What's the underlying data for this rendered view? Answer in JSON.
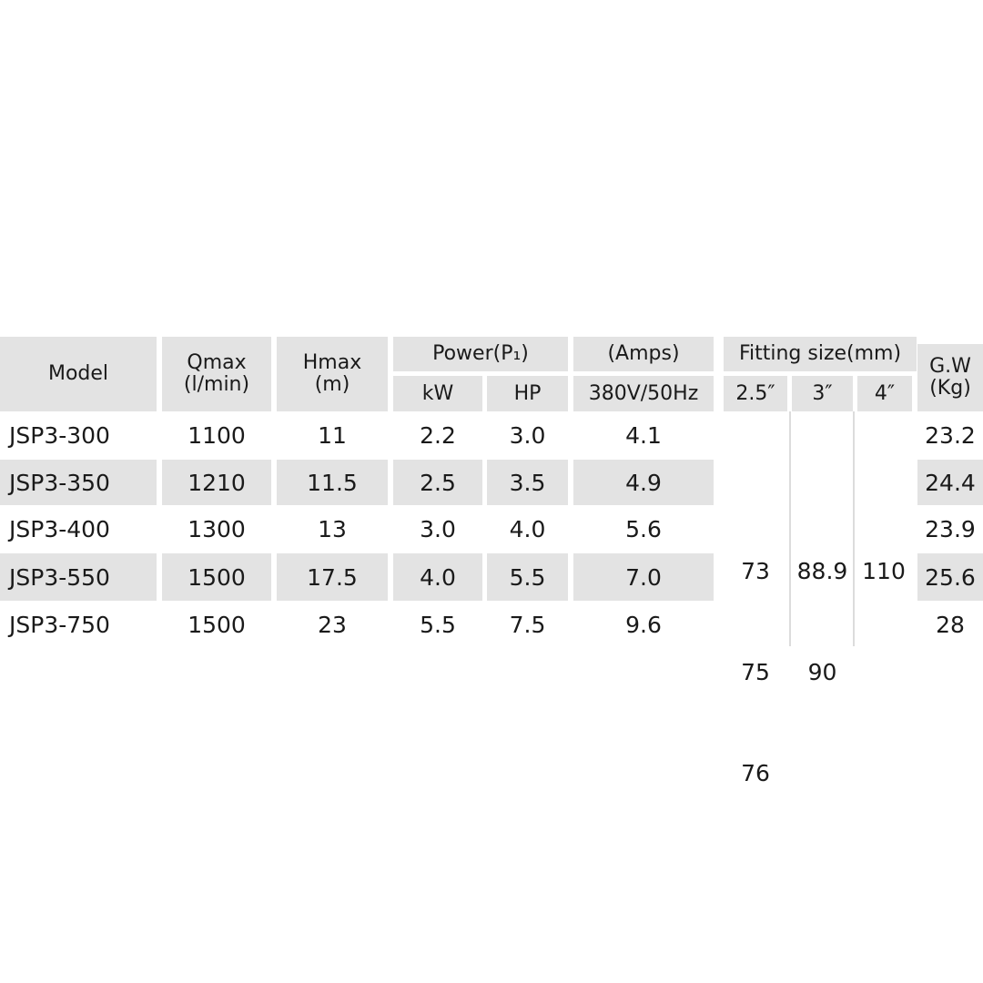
{
  "headers": {
    "model": "Model",
    "qmax": "Qmax",
    "qmax_unit": "(l/min)",
    "hmax": "Hmax",
    "hmax_unit": "(m)",
    "power": "Power(P₁)",
    "kw": "kW",
    "hp": "HP",
    "amps": "(Amps)",
    "voltage": "380V/50Hz",
    "fitting": "Fitting size(mm)",
    "fit_25": "2.5″",
    "fit_3": "3″",
    "fit_4": "4″",
    "gw": "G.W",
    "gw_unit": "(Kg)"
  },
  "rows": [
    {
      "model": "JSP3-300",
      "qmax": "1100",
      "hmax": "11",
      "kw": "2.2",
      "hp": "3.0",
      "amps": "4.1",
      "gw": "23.2"
    },
    {
      "model": "JSP3-350",
      "qmax": "1210",
      "hmax": "11.5",
      "kw": "2.5",
      "hp": "3.5",
      "amps": "4.9",
      "gw": "24.4"
    },
    {
      "model": "JSP3-400",
      "qmax": "1300",
      "hmax": "13",
      "kw": "3.0",
      "hp": "4.0",
      "amps": "5.6",
      "gw": "23.9"
    },
    {
      "model": "JSP3-550",
      "qmax": "1500",
      "hmax": "17.5",
      "kw": "4.0",
      "hp": "5.5",
      "amps": "7.0",
      "gw": "25.6"
    },
    {
      "model": "JSP3-750",
      "qmax": "1500",
      "hmax": "23",
      "kw": "5.5",
      "hp": "7.5",
      "amps": "9.6",
      "gw": "28"
    }
  ],
  "fitting_values": {
    "fit_25": [
      "73",
      "75",
      "76"
    ],
    "fit_3": [
      "88.9",
      "90"
    ],
    "fit_4": [
      "110"
    ]
  },
  "colors": {
    "header_bg": "#e3e3e3",
    "stripe_bg": "#e3e3e3"
  }
}
